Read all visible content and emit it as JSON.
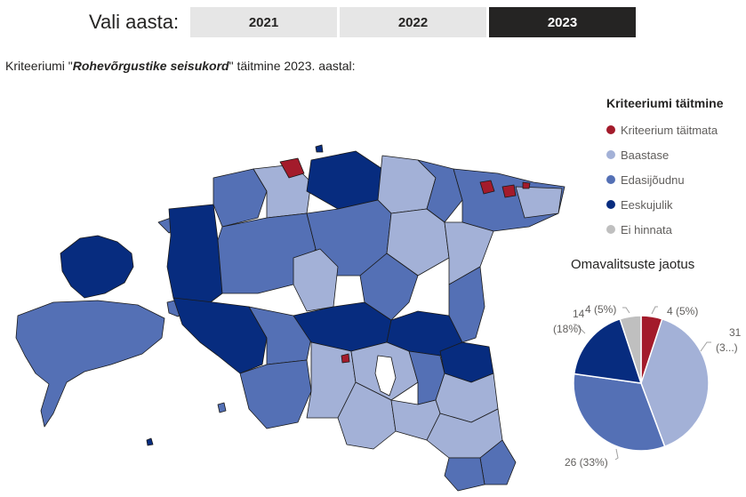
{
  "year_selector": {
    "label": "Vali aasta:",
    "options": [
      "2021",
      "2022",
      "2023"
    ],
    "selected": "2023"
  },
  "subtitle": {
    "prefix": "Kriteeriumi \"",
    "criterion": "Rohevõrgustike seisukord",
    "suffix": "\" täitmine 2023. aastal:"
  },
  "legend": {
    "title": "Kriteeriumi täitmine",
    "items": [
      {
        "label": "Kriteerium täitmata",
        "color": "#a31b2b"
      },
      {
        "label": "Baastase",
        "color": "#a3b1d7"
      },
      {
        "label": "Edasijõudnu",
        "color": "#5470b5"
      },
      {
        "label": "Eeskujulik",
        "color": "#072c7f"
      },
      {
        "label": "Ei hinnata",
        "color": "#bfbfbf"
      }
    ]
  },
  "pie": {
    "title": "Omavalitsuste jaotus",
    "labels": {
      "taitmata": "4 (5%)",
      "baastase_count": "31",
      "baastase_pct": "(3...)",
      "edasijoudnu": "26 (33%)",
      "eeskujulik_count": "14",
      "eeskujulik_pct": "(18%)",
      "ei_hinnata": "4 (5%)"
    }
  },
  "chart_data": {
    "type": "pie",
    "title": "Omavalitsuste jaotus",
    "categories": [
      "Kriteerium täitmata",
      "Baastase",
      "Edasijõudnu",
      "Eeskujulik",
      "Ei hinnata"
    ],
    "values": [
      4,
      31,
      26,
      14,
      4
    ],
    "colors": [
      "#a31b2b",
      "#a3b1d7",
      "#5470b5",
      "#072c7f",
      "#bfbfbf"
    ],
    "legend_position": "top-right"
  }
}
